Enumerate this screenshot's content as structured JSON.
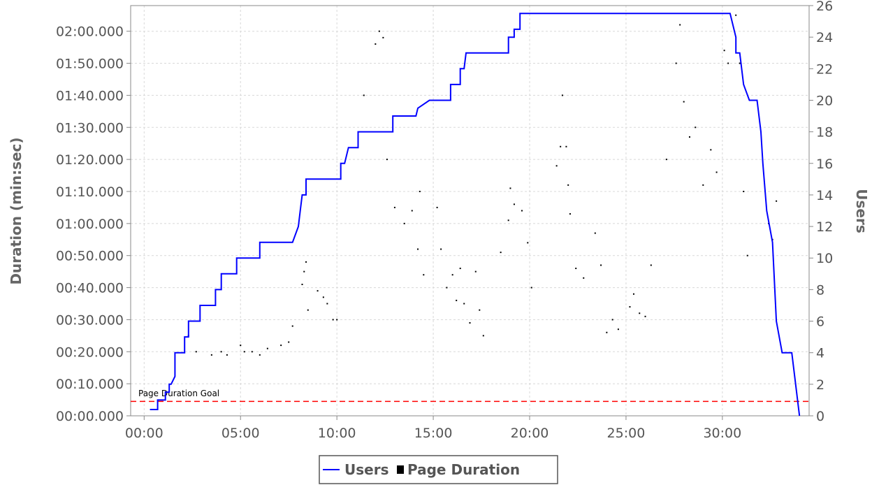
{
  "chart_data": {
    "type": "line",
    "xlabel": "",
    "ylabel": "Duration (min:sec)",
    "y2label": "Users",
    "x_ticks": [
      "00:00",
      "05:00",
      "10:00",
      "15:00",
      "20:00",
      "25:00",
      "30:00"
    ],
    "x_tick_values_min": [
      0,
      5,
      10,
      15,
      20,
      25,
      30
    ],
    "xlim_min": [
      -0.7,
      34.5
    ],
    "y_ticks": [
      "00:00.000",
      "00:10.000",
      "00:20.000",
      "00:30.000",
      "00:40.000",
      "00:50.000",
      "01:00.000",
      "01:10.000",
      "01:20.000",
      "01:30.000",
      "01:40.000",
      "01:50.000",
      "02:00.000"
    ],
    "y_tick_values_sec": [
      0,
      10,
      20,
      30,
      40,
      50,
      60,
      70,
      80,
      90,
      100,
      110,
      120
    ],
    "ylim_sec": [
      0,
      128
    ],
    "y2_ticks": [
      "0",
      "2",
      "4",
      "6",
      "8",
      "10",
      "12",
      "14",
      "16",
      "18",
      "20",
      "22",
      "24",
      "26"
    ],
    "y2_tick_values": [
      0,
      2,
      4,
      6,
      8,
      10,
      12,
      14,
      16,
      18,
      20,
      22,
      24,
      26
    ],
    "y2lim": [
      0,
      26
    ],
    "grid": true,
    "legend_position": "bottom-center",
    "series": [
      {
        "name": "Users",
        "axis": "right",
        "color": "#0000ff",
        "points": [
          [
            0.3,
            0.4
          ],
          [
            0.7,
            0.4
          ],
          [
            0.7,
            1
          ],
          [
            1.1,
            1
          ],
          [
            1.1,
            1.5
          ],
          [
            1.3,
            1.5
          ],
          [
            1.3,
            2
          ],
          [
            1.4,
            2
          ],
          [
            1.6,
            2.5
          ],
          [
            1.6,
            4
          ],
          [
            2.1,
            4
          ],
          [
            2.1,
            5
          ],
          [
            2.3,
            5
          ],
          [
            2.3,
            6
          ],
          [
            2.9,
            6
          ],
          [
            2.9,
            7
          ],
          [
            3.7,
            7
          ],
          [
            3.7,
            8
          ],
          [
            4.0,
            8
          ],
          [
            4.0,
            9
          ],
          [
            4.8,
            9
          ],
          [
            4.8,
            10
          ],
          [
            6.0,
            10
          ],
          [
            6.0,
            11
          ],
          [
            7.7,
            11
          ],
          [
            8.0,
            12
          ],
          [
            8.1,
            13
          ],
          [
            8.2,
            14
          ],
          [
            8.4,
            14
          ],
          [
            8.4,
            15
          ],
          [
            10.2,
            15
          ],
          [
            10.2,
            16
          ],
          [
            10.4,
            16
          ],
          [
            10.6,
            17
          ],
          [
            11.1,
            17
          ],
          [
            11.1,
            18
          ],
          [
            12.9,
            18
          ],
          [
            12.9,
            19
          ],
          [
            14.1,
            19
          ],
          [
            14.2,
            19.5
          ],
          [
            14.8,
            20
          ],
          [
            15.9,
            20
          ],
          [
            15.9,
            21
          ],
          [
            16.4,
            21
          ],
          [
            16.4,
            22
          ],
          [
            16.6,
            22
          ],
          [
            16.7,
            23
          ],
          [
            18.9,
            23
          ],
          [
            18.9,
            24
          ],
          [
            19.2,
            24
          ],
          [
            19.2,
            24.5
          ],
          [
            19.5,
            24.5
          ],
          [
            19.5,
            25.5
          ],
          [
            30.2,
            25.5
          ],
          [
            30.4,
            25.5
          ],
          [
            30.7,
            24
          ],
          [
            30.7,
            23
          ],
          [
            30.9,
            23
          ],
          [
            31.1,
            21
          ],
          [
            31.4,
            20
          ],
          [
            31.8,
            20
          ],
          [
            32.0,
            18
          ],
          [
            32.1,
            16
          ],
          [
            32.3,
            13
          ],
          [
            32.6,
            11
          ],
          [
            32.8,
            6
          ],
          [
            33.1,
            4
          ],
          [
            33.6,
            4
          ],
          [
            34.0,
            0
          ]
        ]
      },
      {
        "name": "Page Duration",
        "axis": "left",
        "color": "#000000",
        "points": [
          [
            2.3,
            25
          ],
          [
            2.7,
            20
          ],
          [
            3.5,
            19
          ],
          [
            4.0,
            20
          ],
          [
            4.3,
            19
          ],
          [
            5.0,
            22
          ],
          [
            5.2,
            20
          ],
          [
            5.6,
            20
          ],
          [
            6.0,
            19
          ],
          [
            6.4,
            21
          ],
          [
            7.1,
            22
          ],
          [
            7.5,
            23
          ],
          [
            7.7,
            28
          ],
          [
            8.2,
            41
          ],
          [
            8.3,
            45
          ],
          [
            8.4,
            48
          ],
          [
            8.5,
            33
          ],
          [
            9.0,
            39
          ],
          [
            9.3,
            37
          ],
          [
            9.5,
            35
          ],
          [
            9.8,
            30
          ],
          [
            10.0,
            30
          ],
          [
            11.4,
            100
          ],
          [
            12.0,
            116
          ],
          [
            12.2,
            120
          ],
          [
            12.4,
            118
          ],
          [
            12.6,
            80
          ],
          [
            13.0,
            65
          ],
          [
            13.5,
            60
          ],
          [
            13.9,
            64
          ],
          [
            14.3,
            70
          ],
          [
            14.2,
            52
          ],
          [
            14.5,
            44
          ],
          [
            15.2,
            65
          ],
          [
            15.4,
            52
          ],
          [
            15.7,
            40
          ],
          [
            16.0,
            44
          ],
          [
            16.2,
            36
          ],
          [
            16.4,
            46
          ],
          [
            16.6,
            35
          ],
          [
            16.9,
            29
          ],
          [
            17.2,
            45
          ],
          [
            17.4,
            33
          ],
          [
            17.6,
            25
          ],
          [
            18.5,
            51
          ],
          [
            18.9,
            61
          ],
          [
            19.0,
            71
          ],
          [
            19.2,
            66
          ],
          [
            19.6,
            64
          ],
          [
            19.9,
            54
          ],
          [
            20.1,
            40
          ],
          [
            21.4,
            78
          ],
          [
            21.6,
            84
          ],
          [
            21.7,
            100
          ],
          [
            21.9,
            84
          ],
          [
            22.0,
            72
          ],
          [
            22.1,
            63
          ],
          [
            22.4,
            46
          ],
          [
            22.8,
            43
          ],
          [
            23.4,
            57
          ],
          [
            23.7,
            47
          ],
          [
            24.0,
            26
          ],
          [
            24.3,
            30
          ],
          [
            24.6,
            27
          ],
          [
            25.2,
            34
          ],
          [
            25.4,
            38
          ],
          [
            25.7,
            32
          ],
          [
            26.0,
            31
          ],
          [
            26.3,
            47
          ],
          [
            27.1,
            80
          ],
          [
            27.6,
            110
          ],
          [
            27.8,
            122
          ],
          [
            28.0,
            98
          ],
          [
            28.3,
            87
          ],
          [
            28.6,
            90
          ],
          [
            29.0,
            72
          ],
          [
            29.4,
            83
          ],
          [
            29.7,
            76
          ],
          [
            30.1,
            114
          ],
          [
            30.3,
            110
          ],
          [
            30.7,
            125
          ],
          [
            30.9,
            110
          ],
          [
            31.1,
            70
          ],
          [
            31.3,
            50
          ],
          [
            32.4,
            60
          ],
          [
            32.6,
            55
          ],
          [
            32.8,
            67
          ]
        ]
      },
      {
        "name": "Page Duration Goal",
        "axis": "left",
        "color": "#ff0000",
        "y": 4.5
      }
    ]
  },
  "annotations": {
    "goal_label": "Page Duration Goal"
  },
  "legend": {
    "users_label": "Users",
    "duration_label": "Page Duration"
  }
}
